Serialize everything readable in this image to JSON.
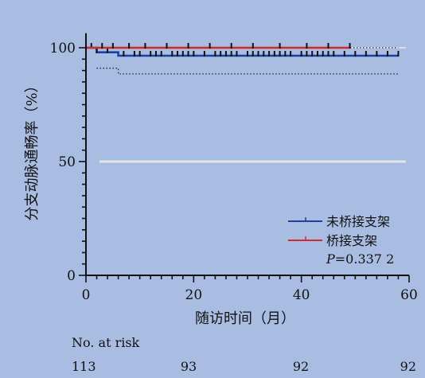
{
  "chart_data": {
    "type": "line",
    "subtype": "kaplan-meier survival curve",
    "xlabel": "随访时间（月）",
    "ylabel": "分支动脉通畅率（%）",
    "xlim": [
      0,
      60
    ],
    "ylim": [
      0,
      105
    ],
    "x_ticks": [
      0,
      20,
      40,
      60
    ],
    "y_ticks": [
      0,
      50,
      100
    ],
    "grid": false,
    "reference_line_y": 50,
    "series": [
      {
        "name": "未桥接支架",
        "color": "#1f3f9c",
        "steps": [
          [
            0,
            100
          ],
          [
            2,
            100
          ],
          [
            2,
            98
          ],
          [
            6,
            98
          ],
          [
            6,
            96.5
          ],
          [
            58,
            96.5
          ]
        ],
        "censor_x": [
          1,
          2,
          4,
          7,
          9,
          10,
          12,
          13,
          14,
          16,
          17,
          18,
          19,
          20,
          22,
          24,
          25,
          26,
          27,
          28,
          30,
          31,
          32,
          33,
          34,
          35,
          36,
          37,
          38,
          40,
          41,
          42,
          43,
          44,
          45,
          46,
          48,
          50,
          52,
          54,
          56,
          58
        ]
      },
      {
        "name": "桥接支架",
        "color": "#d12a2a",
        "steps": [
          [
            0,
            100
          ],
          [
            49,
            100
          ]
        ],
        "censor_x": [
          3,
          5,
          8,
          11,
          15,
          19,
          23,
          27,
          31,
          36,
          41,
          45,
          49
        ]
      }
    ],
    "ci_lines": [
      {
        "steps": [
          [
            0,
            100
          ],
          [
            58,
            100
          ]
        ]
      },
      {
        "steps": [
          [
            2,
            91
          ],
          [
            6,
            91
          ],
          [
            6,
            88.5
          ],
          [
            58,
            88.5
          ]
        ]
      }
    ],
    "legend_position": "bottom-right",
    "p_value_prefix": "P",
    "p_value_rest": "=0.337 2",
    "risk_table": {
      "title": "No. at risk",
      "values": [
        "113",
        "93",
        "92",
        "92"
      ]
    }
  }
}
